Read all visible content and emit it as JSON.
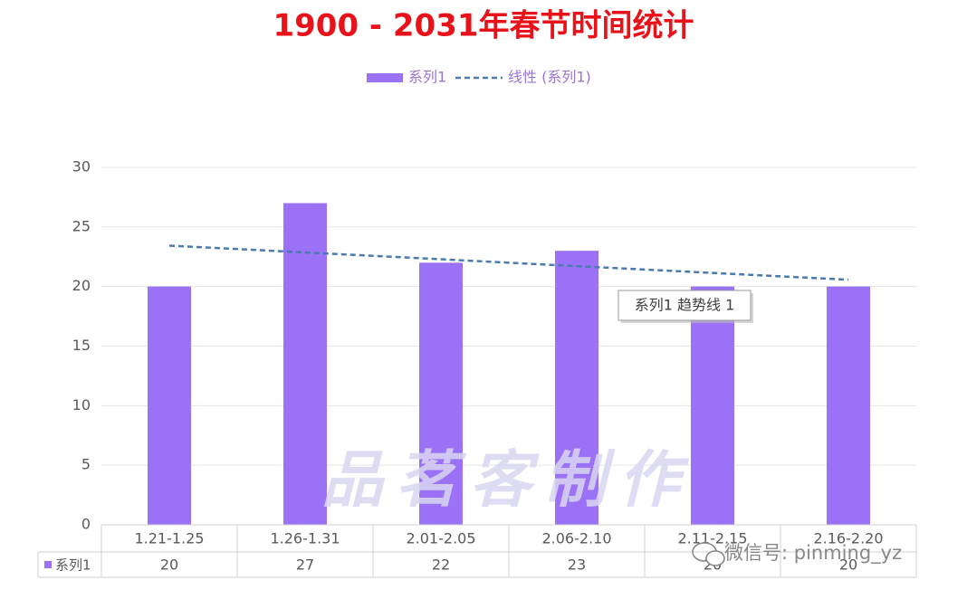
{
  "chart_data": {
    "type": "bar",
    "title": "1900 - 2031年春节时间统计",
    "categories": [
      "1.21-1.25",
      "1.26-1.31",
      "2.01-2.05",
      "2.06-2.10",
      "2.11-2.15",
      "2.16-2.20"
    ],
    "series": [
      {
        "name": "系列1",
        "color": "#9b72f5",
        "values": [
          20,
          27,
          22,
          23,
          20,
          20
        ]
      }
    ],
    "trendline": {
      "name": "线性 (系列1)",
      "color": "#4a7ab0",
      "values": [
        23.43,
        22.86,
        22.29,
        21.71,
        21.14,
        20.57
      ]
    },
    "tooltip": "系列1 趋势线 1",
    "ylim": [
      0,
      30
    ],
    "yticks": [
      0,
      5,
      10,
      15,
      20,
      25,
      30
    ],
    "grid": true,
    "legend": "top",
    "data_table": true,
    "watermark": "品茗客制作",
    "overlay": "微信号: pinming_yz"
  }
}
